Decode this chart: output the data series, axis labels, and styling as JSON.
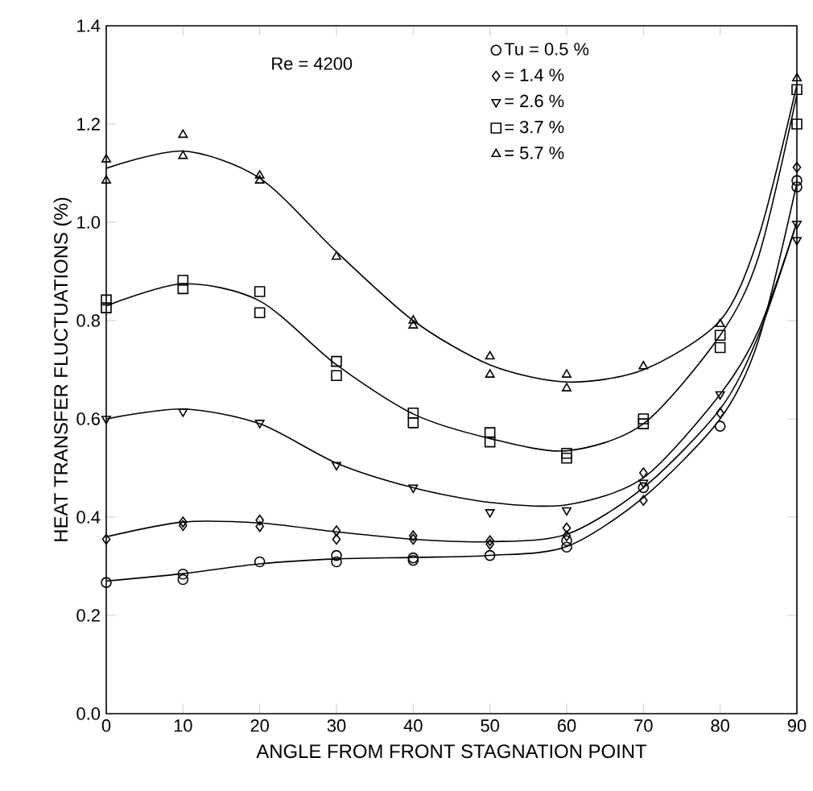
{
  "chart_data": {
    "type": "scatter",
    "xlabel": "ANGLE FROM FRONT STAGNATION POINT",
    "ylabel": "HEAT TRANSFER  FLUCTUATIONS (%)",
    "annotations": [
      "Re = 4200"
    ],
    "legend": "top right",
    "xlim": [
      0,
      90
    ],
    "ylim": [
      0,
      1.4
    ],
    "xticks": [
      0,
      10,
      20,
      30,
      40,
      50,
      60,
      70,
      80,
      90
    ],
    "yticks": [
      {
        "value": 0,
        "label": "0.0"
      },
      0.2,
      0.4,
      0.6,
      0.8,
      {
        "value": 1,
        "label": "1.0"
      },
      1.2,
      1.4
    ],
    "series": [
      {
        "name": "Tu = 0.5 %",
        "marker": "circle",
        "color": "#000000",
        "x": [
          0,
          10,
          10,
          20,
          30,
          30,
          40,
          40,
          50,
          60,
          60,
          70,
          80,
          90,
          90
        ],
        "values": [
          0.267,
          0.284,
          0.273,
          0.309,
          0.322,
          0.309,
          0.312,
          0.317,
          0.322,
          0.339,
          0.352,
          0.46,
          0.585,
          1.072,
          1.085
        ]
      },
      {
        "name": "= 1.4 %",
        "marker": "diamond",
        "color": "#000000",
        "x": [
          0,
          10,
          10,
          20,
          20,
          30,
          30,
          40,
          40,
          50,
          50,
          60,
          60,
          70,
          70,
          80,
          90
        ],
        "values": [
          0.355,
          0.383,
          0.39,
          0.394,
          0.381,
          0.372,
          0.355,
          0.362,
          0.355,
          0.352,
          0.345,
          0.378,
          0.362,
          0.49,
          0.434,
          0.612,
          1.112
        ]
      },
      {
        "name": "= 2.6 %",
        "marker": "triangle-down",
        "color": "#000000",
        "x": [
          0,
          10,
          20,
          30,
          40,
          50,
          60,
          70,
          80,
          90,
          90
        ],
        "values": [
          0.6,
          0.615,
          0.592,
          0.506,
          0.46,
          0.41,
          0.414,
          0.47,
          0.65,
          0.964,
          0.997
        ]
      },
      {
        "name": "= 3.7 %",
        "marker": "square",
        "color": "#000000",
        "x": [
          0,
          0,
          10,
          10,
          20,
          20,
          30,
          30,
          40,
          40,
          50,
          50,
          60,
          60,
          70,
          70,
          80,
          80,
          90,
          90
        ],
        "values": [
          0.842,
          0.826,
          0.882,
          0.865,
          0.859,
          0.816,
          0.717,
          0.688,
          0.612,
          0.592,
          0.572,
          0.553,
          0.53,
          0.52,
          0.6,
          0.59,
          0.77,
          0.745,
          1.27,
          1.2
        ]
      },
      {
        "name": "= 5.7 %",
        "marker": "triangle",
        "color": "#000000",
        "x": [
          0,
          0,
          10,
          10,
          20,
          20,
          30,
          40,
          40,
          50,
          50,
          60,
          60,
          70,
          80,
          90
        ],
        "values": [
          1.128,
          1.085,
          1.178,
          1.135,
          1.095,
          1.085,
          0.93,
          0.8,
          0.79,
          0.727,
          0.69,
          0.69,
          0.662,
          0.707,
          0.793,
          1.293
        ]
      },
      {
        "type": "line",
        "marker": "none",
        "color": "#000000",
        "x": [
          0,
          10,
          20,
          30,
          40,
          50,
          60,
          70,
          80,
          85,
          90
        ],
        "values": [
          0.27,
          0.285,
          0.305,
          0.315,
          0.318,
          0.322,
          0.34,
          0.44,
          0.6,
          0.76,
          1.08
        ]
      },
      {
        "type": "line",
        "marker": "none",
        "color": "#000000",
        "x": [
          0,
          10,
          20,
          30,
          40,
          50,
          60,
          70,
          80,
          85,
          90
        ],
        "values": [
          0.36,
          0.39,
          0.388,
          0.37,
          0.355,
          0.35,
          0.365,
          0.46,
          0.62,
          0.77,
          1.0
        ]
      },
      {
        "type": "line",
        "marker": "none",
        "color": "#000000",
        "x": [
          0,
          10,
          20,
          30,
          40,
          50,
          60,
          70,
          80,
          85,
          90
        ],
        "values": [
          0.6,
          0.62,
          0.59,
          0.51,
          0.46,
          0.43,
          0.425,
          0.48,
          0.65,
          0.78,
          1.0
        ]
      },
      {
        "type": "line",
        "marker": "none",
        "color": "#000000",
        "x": [
          0,
          10,
          20,
          30,
          40,
          50,
          60,
          70,
          80,
          85,
          90
        ],
        "values": [
          0.83,
          0.875,
          0.84,
          0.71,
          0.61,
          0.56,
          0.535,
          0.59,
          0.77,
          0.93,
          1.26
        ]
      },
      {
        "type": "line",
        "marker": "none",
        "color": "#000000",
        "x": [
          0,
          10,
          20,
          30,
          40,
          50,
          60,
          70,
          80,
          85,
          90
        ],
        "values": [
          1.11,
          1.145,
          1.09,
          0.94,
          0.8,
          0.71,
          0.675,
          0.7,
          0.8,
          0.97,
          1.28
        ]
      }
    ]
  }
}
